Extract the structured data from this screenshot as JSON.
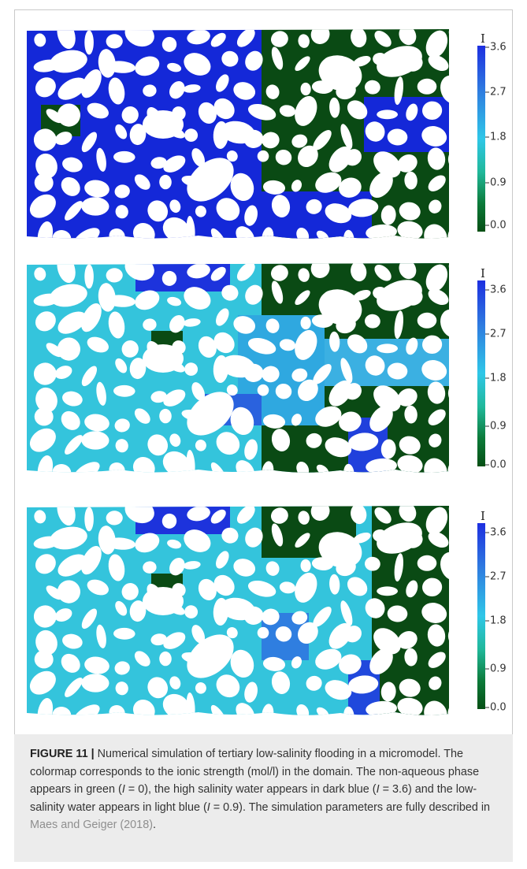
{
  "figure": {
    "panels": [
      {
        "id": "top",
        "colorbar": {
          "title": "I",
          "ticks": [
            "3.6",
            "2.7",
            "1.8",
            "0.9",
            "0.0"
          ]
        }
      },
      {
        "id": "middle",
        "colorbar": {
          "title": "I",
          "ticks": [
            "3.6",
            "2.7",
            "1.8",
            "0.9",
            "0.0"
          ]
        }
      },
      {
        "id": "bottom",
        "colorbar": {
          "title": "I",
          "ticks": [
            "3.6",
            "2.7",
            "1.8",
            "0.9",
            "0.0"
          ]
        }
      }
    ],
    "colors": {
      "non_aqueous_green": "#0a4a14",
      "high_salinity_blue": "#1428d8",
      "low_salinity_lightblue": "#34c4dc",
      "grain_white": "#ffffff"
    }
  },
  "caption": {
    "label": "FIGURE 11 |",
    "text": " Numerical simulation of tertiary low-salinity flooding in a micromodel. The colormap corresponds to the ionic strength (mol/l) in the domain. The non-aqueous phase appears in green (",
    "i1": "I",
    "t1": " = 0), the high salinity water appears in dark blue (",
    "i2": "I",
    "t2": " = 3.6) and the low-salinity water appears in light blue (",
    "i3": "I",
    "t3": " = 0.9). The simulation parameters are fully described in ",
    "ref": "Maes and Geiger (2018)",
    "end": "."
  }
}
